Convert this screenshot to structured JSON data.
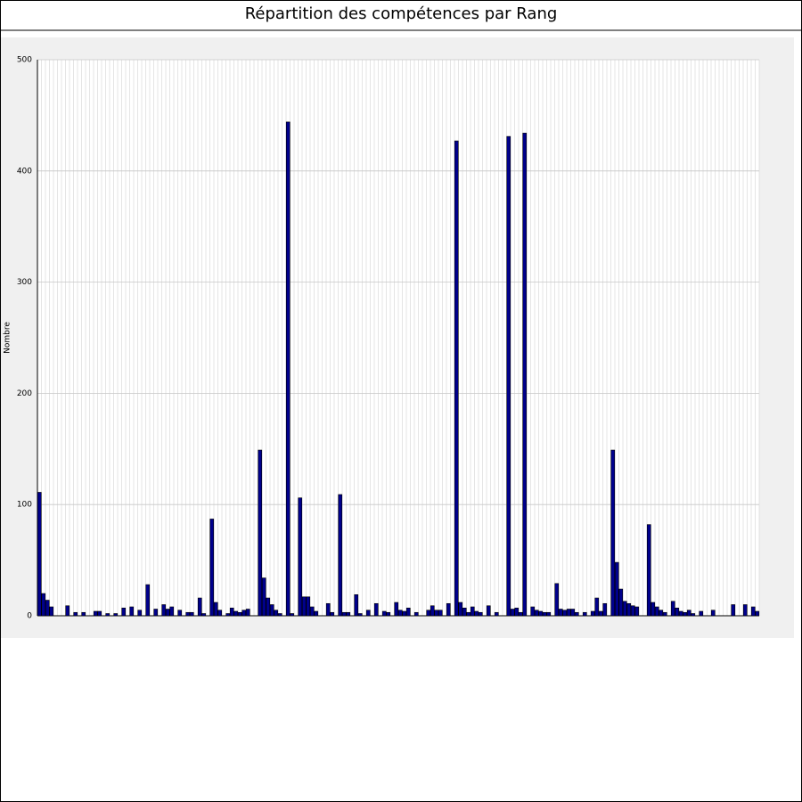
{
  "chart_data": {
    "type": "bar",
    "title": "Répartition des compétences par Rang",
    "y_label": "Nombre",
    "categories": [
      null,
      null,
      null,
      null,
      null,
      null,
      null,
      null,
      null,
      null,
      null,
      null,
      null,
      null,
      null,
      null,
      null,
      null,
      null,
      null,
      null,
      null,
      null,
      null,
      null,
      null,
      null,
      null,
      null,
      null,
      null,
      null,
      null,
      null,
      null,
      null,
      null,
      null,
      null,
      null,
      null,
      null,
      null,
      null,
      null,
      null,
      null,
      null,
      null,
      null,
      null,
      null,
      null,
      null,
      null,
      null,
      null,
      null,
      null,
      null,
      null,
      null,
      null,
      null,
      null,
      null,
      null,
      null,
      null,
      null,
      null,
      null,
      null,
      null,
      null,
      null,
      null,
      null,
      null,
      null,
      null,
      null,
      null,
      null,
      null,
      null,
      null,
      null,
      null,
      null,
      null,
      null,
      null,
      null,
      null,
      null,
      null,
      null,
      null,
      null,
      null,
      null,
      null,
      null,
      null,
      null,
      null,
      null,
      null,
      null,
      null,
      null,
      null,
      null,
      null,
      null,
      null,
      null,
      null,
      null,
      null,
      null,
      null,
      null,
      null,
      null,
      null,
      null,
      null,
      null,
      null,
      null,
      null,
      null,
      null,
      null,
      null,
      null,
      null,
      null,
      null,
      null,
      null,
      null,
      null,
      null,
      null,
      null,
      null,
      null,
      null,
      null,
      null,
      null,
      null,
      null,
      null,
      null,
      null,
      null,
      null,
      null,
      null,
      null,
      null,
      null,
      null,
      null,
      null,
      null,
      null,
      null,
      null,
      null,
      null,
      null,
      null,
      null,
      null,
      null
    ],
    "values": [
      111,
      20,
      14,
      8,
      0,
      0,
      0,
      9,
      0,
      3,
      0,
      3,
      0,
      0,
      4,
      4,
      0,
      2,
      0,
      2,
      0,
      7,
      0,
      8,
      0,
      5,
      0,
      28,
      0,
      6,
      0,
      10,
      6,
      8,
      0,
      5,
      0,
      3,
      3,
      0,
      16,
      2,
      0,
      87,
      12,
      5,
      0,
      2,
      7,
      4,
      3,
      5,
      6,
      0,
      0,
      149,
      34,
      16,
      10,
      5,
      2,
      0,
      444,
      2,
      0,
      106,
      17,
      17,
      8,
      4,
      0,
      0,
      11,
      3,
      0,
      109,
      3,
      3,
      0,
      19,
      2,
      0,
      5,
      0,
      11,
      0,
      4,
      3,
      0,
      12,
      5,
      4,
      7,
      0,
      3,
      0,
      0,
      5,
      9,
      5,
      5,
      0,
      11,
      0,
      427,
      12,
      7,
      3,
      8,
      4,
      3,
      0,
      9,
      0,
      3,
      0,
      0,
      431,
      6,
      7,
      3,
      434,
      0,
      8,
      5,
      4,
      3,
      3,
      0,
      29,
      6,
      5,
      6,
      6,
      3,
      0,
      3,
      0,
      4,
      16,
      4,
      11,
      0,
      149,
      48,
      24,
      13,
      11,
      9,
      8,
      0,
      0,
      82,
      12,
      8,
      5,
      3,
      0,
      13,
      7,
      4,
      3,
      5,
      2,
      0,
      4,
      0,
      0,
      5,
      0,
      0,
      0,
      0,
      10,
      0,
      0,
      10,
      0,
      8,
      4
    ],
    "color": "#00008b",
    "ylim": [
      0,
      500
    ],
    "yticks": [
      0,
      100,
      200,
      300,
      400,
      500
    ],
    "grid": true
  }
}
